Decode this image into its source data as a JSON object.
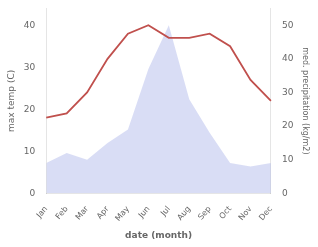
{
  "chart_data": {
    "type": "line",
    "xlabel": "date (month)",
    "ylabel": "max temp (C)",
    "y2label": "med. precipitation (kg/m2)",
    "categories": [
      "Jan",
      "Feb",
      "Mar",
      "Apr",
      "May",
      "Jun",
      "Jul",
      "Aug",
      "Sep",
      "Oct",
      "Nov",
      "Dec"
    ],
    "series": [
      {
        "type": "area",
        "color": "#aab4e8",
        "axis": "y2",
        "values": [
          9,
          12,
          10,
          15,
          19,
          37,
          50,
          28,
          18,
          9,
          8,
          9
        ]
      },
      {
        "type": "line",
        "color": "#c0504d",
        "values": [
          18,
          19,
          24,
          32,
          38,
          40,
          37,
          37,
          38,
          35,
          27,
          22
        ]
      }
    ],
    "ylim": [
      0,
      44
    ],
    "yticks": [
      0,
      10,
      20,
      30,
      40
    ],
    "y2lim": [
      0,
      55
    ],
    "y2ticks": [
      0,
      10,
      20,
      30,
      40,
      50
    ],
    "grid": false,
    "legend": false
  }
}
